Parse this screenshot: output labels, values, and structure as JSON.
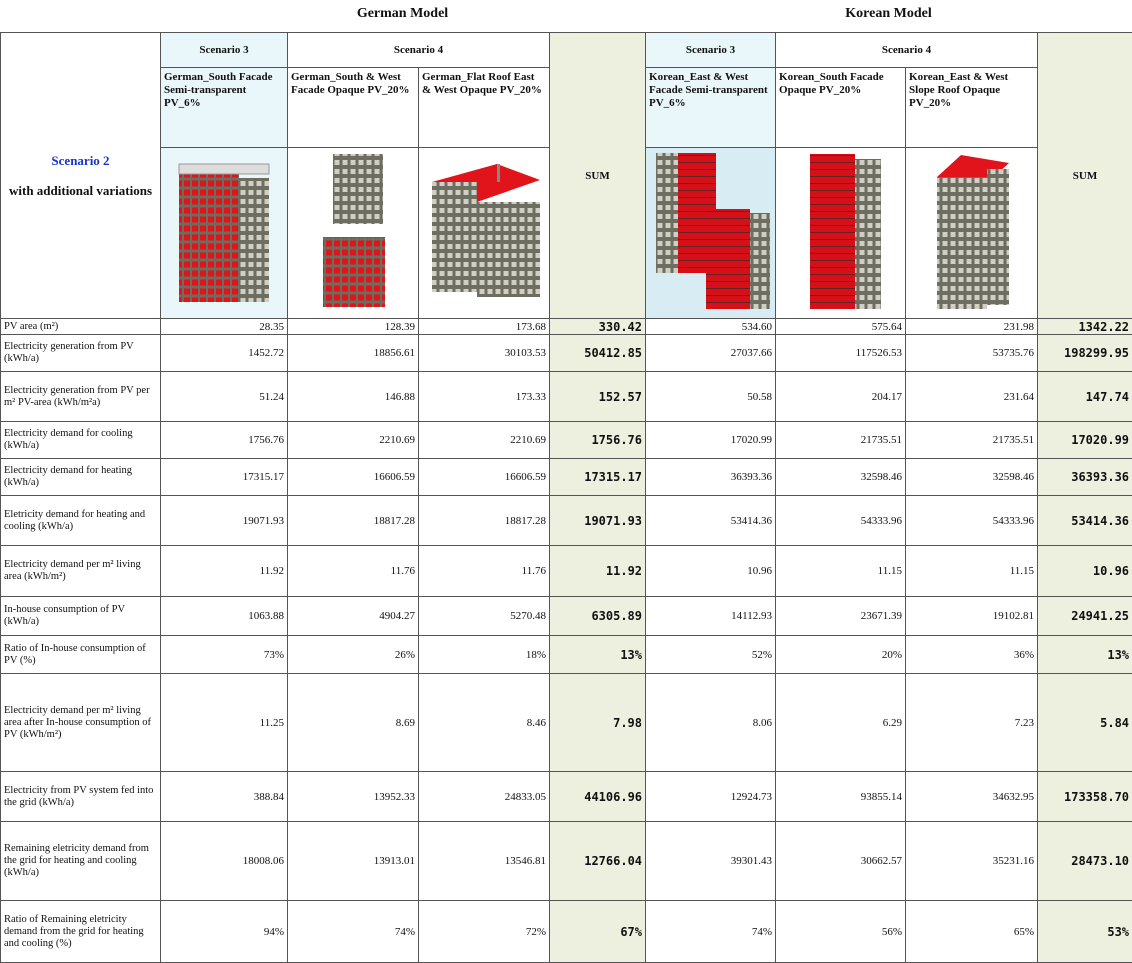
{
  "header": {
    "german": "German Model",
    "korean": "Korean Model"
  },
  "table": {
    "corner": {
      "scenario": "Scenario 2",
      "note": "with additional variations"
    },
    "groups": [
      {
        "scenario3": "Scenario 3",
        "scenario4": "Scenario 4",
        "sum": "SUM",
        "names": [
          "German_South Facade Semi-transparent PV_6%",
          "German_South & West Facade Opaque PV_20%",
          "German_Flat Roof East & West Opaque PV_20%"
        ]
      },
      {
        "scenario3": "Scenario 3",
        "scenario4": "Scenario 4",
        "sum": "SUM",
        "names": [
          "Korean_East & West Facade Semi-transparent PV_6%",
          "Korean_South Facade Opaque PV_20%",
          "Korean_East & West Slope Roof Opaque PV_20%"
        ]
      }
    ],
    "rows": [
      {
        "label": "PV area (m²)",
        "values": [
          "28.35",
          "128.39",
          "173.68",
          "330.42",
          "534.60",
          "575.64",
          "231.98",
          "1342.22"
        ]
      },
      {
        "label": "Electricity generation from PV (kWh/a)",
        "values": [
          "1452.72",
          "18856.61",
          "30103.53",
          "50412.85",
          "27037.66",
          "117526.53",
          "53735.76",
          "198299.95"
        ]
      },
      {
        "label": "Electricity generation from PV per m² PV-area (kWh/m²a)",
        "values": [
          "51.24",
          "146.88",
          "173.33",
          "152.57",
          "50.58",
          "204.17",
          "231.64",
          "147.74"
        ]
      },
      {
        "label": "Electricity demand for cooling (kWh/a)",
        "values": [
          "1756.76",
          "2210.69",
          "2210.69",
          "1756.76",
          "17020.99",
          "21735.51",
          "21735.51",
          "17020.99"
        ]
      },
      {
        "label": "Electricity demand for heating (kWh/a)",
        "values": [
          "17315.17",
          "16606.59",
          "16606.59",
          "17315.17",
          "36393.36",
          "32598.46",
          "32598.46",
          "36393.36"
        ]
      },
      {
        "label": "Eletricity demand for heating and cooling (kWh/a)",
        "values": [
          "19071.93",
          "18817.28",
          "18817.28",
          "19071.93",
          "53414.36",
          "54333.96",
          "54333.96",
          "53414.36"
        ]
      },
      {
        "label": "Electricity demand per m² living area (kWh/m²)",
        "values": [
          "11.92",
          "11.76",
          "11.76",
          "11.92",
          "10.96",
          "11.15",
          "11.15",
          "10.96"
        ]
      },
      {
        "label": "In-house consumption of PV (kWh/a)",
        "values": [
          "1063.88",
          "4904.27",
          "5270.48",
          "6305.89",
          "14112.93",
          "23671.39",
          "19102.81",
          "24941.25"
        ]
      },
      {
        "label": "Ratio of In-house consumption of PV (%)",
        "values": [
          "73%",
          "26%",
          "18%",
          "13%",
          "52%",
          "20%",
          "36%",
          "13%"
        ]
      },
      {
        "label": "Electricity demand per m² living area after In-house consumption of PV (kWh/m²)",
        "values": [
          "11.25",
          "8.69",
          "8.46",
          "7.98",
          "8.06",
          "6.29",
          "7.23",
          "5.84"
        ]
      },
      {
        "label": "Electricity from PV system fed into the grid (kWh/a)",
        "values": [
          "388.84",
          "13952.33",
          "24833.05",
          "44106.96",
          "12924.73",
          "93855.14",
          "34632.95",
          "173358.70"
        ]
      },
      {
        "label": "Remaining eletricity demand from the grid for heating and cooling (kWh/a)",
        "values": [
          "18008.06",
          "13913.01",
          "13546.81",
          "12766.04",
          "39301.43",
          "30662.57",
          "35231.16",
          "28473.10"
        ]
      },
      {
        "label": "Ratio of Remaining eletricity demand from the grid for heating and cooling (%)",
        "values": [
          "94%",
          "74%",
          "72%",
          "67%",
          "74%",
          "56%",
          "65%",
          "53%"
        ]
      }
    ]
  }
}
